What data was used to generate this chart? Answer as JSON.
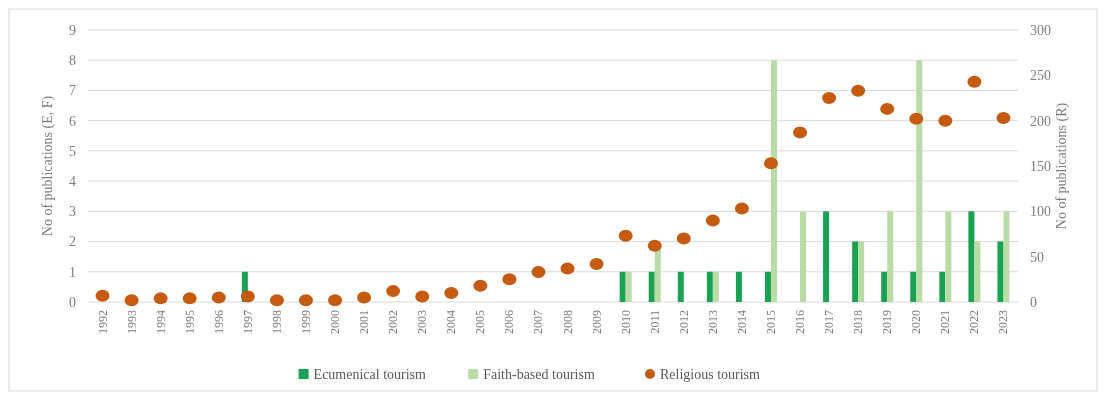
{
  "chart_data": {
    "type": "bar",
    "ylabel": "No of publications (E, F)",
    "y2label": "No of publications (R)",
    "categories": [
      "1992",
      "1993",
      "1994",
      "1995",
      "1996",
      "1997",
      "1998",
      "1999",
      "2000",
      "2001",
      "2002",
      "2003",
      "2004",
      "2005",
      "2006",
      "2007",
      "2008",
      "2009",
      "2010",
      "2011",
      "2012",
      "2013",
      "2014",
      "2015",
      "2016",
      "2017",
      "2018",
      "2019",
      "2020",
      "2021",
      "2022",
      "2023"
    ],
    "series": [
      {
        "name": "Ecumenical tourism",
        "color": "#1aa152",
        "values": [
          0,
          0,
          0,
          0,
          0,
          1,
          0,
          0,
          0,
          0,
          0,
          0,
          0,
          0,
          0,
          0,
          0,
          0,
          1,
          1,
          1,
          1,
          1,
          1,
          0,
          3,
          2,
          1,
          1,
          1,
          3,
          2
        ]
      },
      {
        "name": "Faith-based tourism",
        "color": "#b9dca6",
        "values": [
          0,
          0,
          0,
          0,
          0,
          0,
          0,
          0,
          0,
          0,
          0,
          0,
          0,
          0,
          0,
          0,
          0,
          0,
          1,
          2,
          0,
          1,
          0,
          8,
          3,
          0,
          2,
          3,
          8,
          3,
          2,
          3
        ]
      },
      {
        "name": "Religious tourism",
        "type": "scatter",
        "axis": "y2",
        "color": "#c55a11",
        "marker": "circle",
        "values": [
          7,
          2,
          4,
          4,
          5,
          6,
          2,
          2,
          2,
          5,
          12,
          6,
          10,
          18,
          25,
          33,
          37,
          42,
          73,
          62,
          70,
          90,
          103,
          153,
          187,
          225,
          233,
          213,
          202,
          200,
          243,
          203
        ]
      }
    ],
    "ylim": [
      0,
      9
    ],
    "yticks": [
      0,
      1,
      2,
      3,
      4,
      5,
      6,
      7,
      8,
      9
    ],
    "y2lim": [
      0,
      300
    ],
    "y2ticks": [
      0,
      50,
      100,
      150,
      200,
      250,
      300
    ],
    "grid": "y",
    "legend": "bottom"
  }
}
